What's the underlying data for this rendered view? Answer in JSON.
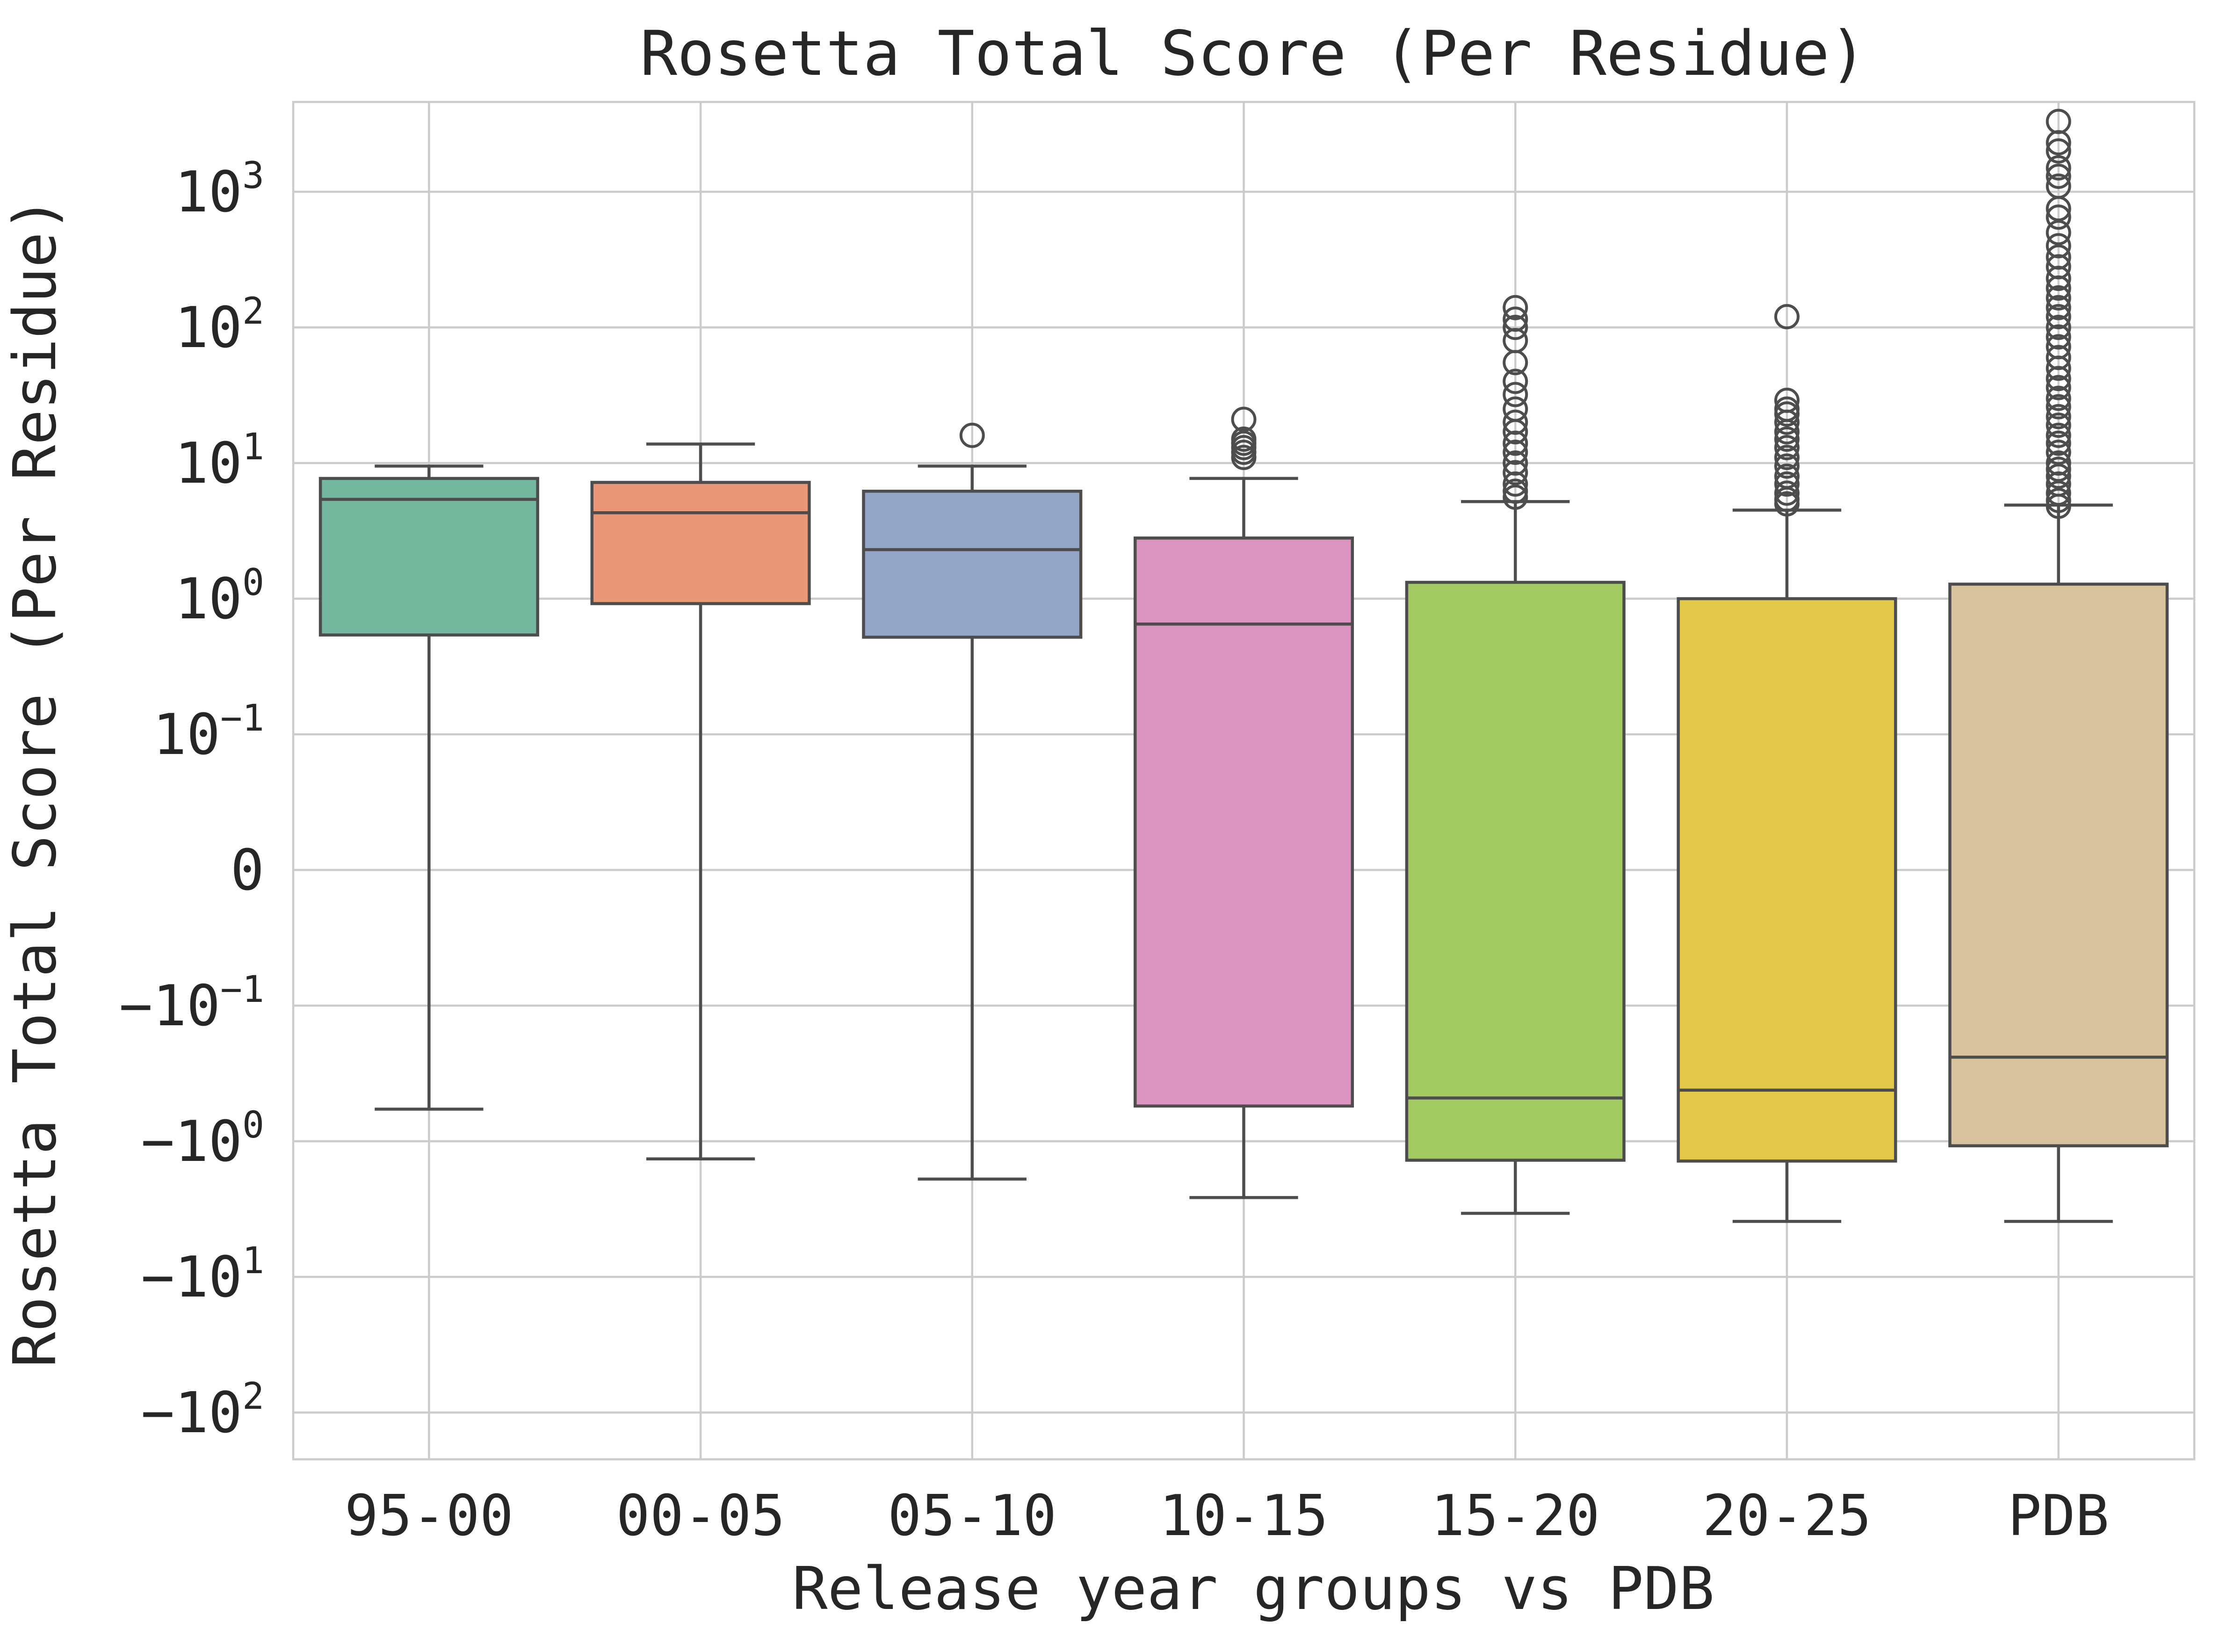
{
  "chart_data": {
    "type": "box",
    "title": "Rosetta Total Score (Per Residue)",
    "xlabel": "Release year groups vs PDB",
    "ylabel": "Rosetta Total Score (Per Residue)",
    "yscale": "symlog",
    "ylim": [
      -200,
      3500
    ],
    "grid": true,
    "legend": "none",
    "y_ticks": [
      {
        "value": 1000,
        "base": "10",
        "exp": "3",
        "neg": false
      },
      {
        "value": 100,
        "base": "10",
        "exp": "2",
        "neg": false
      },
      {
        "value": 10,
        "base": "10",
        "exp": "1",
        "neg": false
      },
      {
        "value": 1,
        "base": "10",
        "exp": "0",
        "neg": false
      },
      {
        "value": 0.1,
        "base": "10",
        "exp": "−1",
        "neg": false
      },
      {
        "value": 0,
        "base": "0",
        "exp": "",
        "neg": false
      },
      {
        "value": -0.1,
        "base": "10",
        "exp": "−1",
        "neg": true
      },
      {
        "value": -1,
        "base": "10",
        "exp": "0",
        "neg": true
      },
      {
        "value": -10,
        "base": "10",
        "exp": "1",
        "neg": true
      },
      {
        "value": -100,
        "base": "10",
        "exp": "2",
        "neg": true
      }
    ],
    "categories": [
      "95-00",
      "00-05",
      "05-10",
      "10-15",
      "15-20",
      "20-25",
      "PDB"
    ],
    "boxes": [
      {
        "category": "95-00",
        "color": "#73b79f",
        "whislo": -0.58,
        "q1": 0.54,
        "median": 5.4,
        "q3": 7.7,
        "whishi": 9.5,
        "fliers": []
      },
      {
        "category": "00-05",
        "color": "#e99776",
        "whislo": -1.35,
        "q1": 0.92,
        "median": 4.3,
        "q3": 7.2,
        "whishi": 13.8,
        "fliers": []
      },
      {
        "category": "05-10",
        "color": "#94a5c5",
        "whislo": -1.9,
        "q1": 0.52,
        "median": 2.3,
        "q3": 6.2,
        "whishi": 9.5,
        "fliers": [
          16
        ]
      },
      {
        "category": "10-15",
        "color": "#db94bf",
        "whislo": -2.6,
        "q1": -0.55,
        "median": 0.65,
        "q3": 2.8,
        "whishi": 7.7,
        "fliers": [
          11,
          12,
          13,
          14,
          15,
          21
        ]
      },
      {
        "category": "15-20",
        "color": "#a3c963",
        "whislo": -3.4,
        "q1": -1.38,
        "median": -0.48,
        "q3": 1.32,
        "whishi": 5.2,
        "fliers": [
          5.6,
          6.2,
          7.0,
          8.5,
          10,
          12,
          14,
          17,
          20,
          25,
          32,
          40,
          55,
          80,
          100,
          115,
          140
        ]
      },
      {
        "category": "20-25",
        "color": "#e3c94a",
        "whislo": -3.9,
        "q1": -1.4,
        "median": -0.42,
        "q3": 1.0,
        "whishi": 4.5,
        "fliers": [
          5.0,
          5.4,
          6.0,
          7.0,
          8.0,
          9.5,
          11,
          13,
          15,
          17,
          20,
          23,
          25,
          29,
          120
        ]
      },
      {
        "category": "PDB",
        "color": "#d9c29e",
        "whislo": -3.9,
        "q1": -1.08,
        "median": -0.24,
        "q3": 1.28,
        "whishi": 4.9,
        "fliers": [
          4.8,
          5.3,
          6,
          7,
          8,
          9,
          10,
          12,
          14,
          16,
          19,
          22,
          26,
          30,
          36,
          42,
          50,
          60,
          72,
          85,
          100,
          120,
          140,
          165,
          195,
          230,
          280,
          330,
          400,
          500,
          650,
          750,
          1100,
          1300,
          1500,
          2000,
          2300,
          3300
        ]
      }
    ]
  }
}
